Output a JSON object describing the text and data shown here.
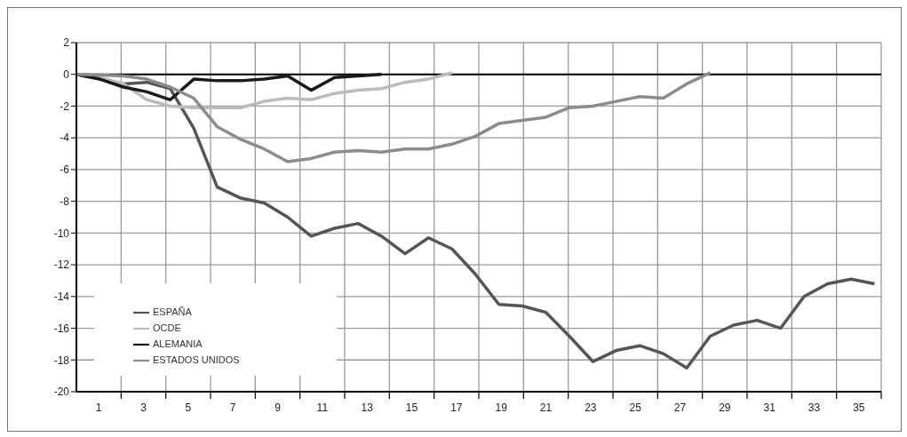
{
  "chart_data": {
    "type": "line",
    "x": [
      0,
      1.05,
      2.1,
      3.15,
      4.2,
      5.25,
      6.3,
      7.35,
      8.4,
      9.45,
      10.5,
      11.55,
      12.6,
      13.65,
      14.7,
      15.75,
      16.8,
      17.85,
      18.9,
      19.95,
      21,
      22.05,
      23.1,
      24.15,
      25.2,
      26.25,
      27.3,
      28.35,
      29.4,
      30.45,
      31.5,
      32.55,
      33.6,
      34.65,
      35.7
    ],
    "series": [
      {
        "name": "ESPAÑA",
        "color": "#555555",
        "values": [
          0,
          -0.3,
          -0.6,
          -0.5,
          -0.9,
          -3.4,
          -7.1,
          -7.8,
          -8.1,
          -9.0,
          -10.2,
          -9.7,
          -9.4,
          -10.2,
          -11.3,
          -10.3,
          -11.0,
          -12.6,
          -14.5,
          -14.6,
          -15.0,
          -16.5,
          -18.1,
          -17.4,
          -17.1,
          -17.6,
          -18.5,
          -16.5,
          -15.8,
          -15.5,
          -16.0,
          -14.0,
          -13.2,
          -12.9,
          -13.2
        ]
      },
      {
        "name": "OCDE",
        "color": "#bbbbbb",
        "values": [
          0,
          -0.2,
          -0.6,
          -1.6,
          -2.0,
          -2.1,
          -2.1,
          -2.1,
          -1.7,
          -1.5,
          -1.6,
          -1.2,
          -1.0,
          -0.9,
          -0.5,
          -0.3,
          0.1,
          null,
          null,
          null,
          null,
          null,
          null,
          null,
          null,
          null,
          null,
          null,
          null,
          null,
          null,
          null,
          null,
          null,
          null
        ]
      },
      {
        "name": "ALEMANIA",
        "color": "#1a1a1a",
        "values": [
          0,
          -0.3,
          -0.8,
          -1.1,
          -1.6,
          -0.3,
          -0.4,
          -0.4,
          -0.3,
          -0.1,
          -1.0,
          -0.2,
          -0.1,
          0,
          null,
          null,
          null,
          null,
          null,
          null,
          null,
          null,
          null,
          null,
          null,
          null,
          null,
          null,
          null,
          null,
          null,
          null,
          null,
          null,
          null
        ]
      },
      {
        "name": "ESTADOS UNIDOS",
        "color": "#8c8c8c",
        "values": [
          0,
          -0.05,
          -0.1,
          -0.3,
          -0.8,
          -1.5,
          -3.3,
          -4.1,
          -4.7,
          -5.5,
          -5.3,
          -4.9,
          -4.8,
          -4.9,
          -4.7,
          -4.7,
          -4.4,
          -3.9,
          -3.1,
          -2.9,
          -2.7,
          -2.1,
          -2.0,
          -1.7,
          -1.4,
          -1.5,
          -0.6,
          0.1,
          null,
          null,
          null,
          null,
          null,
          null,
          null
        ]
      }
    ],
    "xlim": [
      0,
      36
    ],
    "xticks": [
      1,
      {
        "value": 2,
        "label": null
      },
      3,
      {
        "value": 4,
        "label": null
      },
      5,
      {
        "value": 6,
        "label": null
      },
      7,
      {
        "value": 8,
        "label": null
      },
      9,
      {
        "value": 10,
        "label": null
      },
      11,
      {
        "value": 12,
        "label": null
      },
      13,
      {
        "value": 14,
        "label": null
      },
      15,
      {
        "value": 16,
        "label": null
      },
      17,
      {
        "value": 18,
        "label": null
      },
      19,
      {
        "value": 20,
        "label": null
      },
      21,
      {
        "value": 22,
        "label": null
      },
      23,
      {
        "value": 24,
        "label": null
      },
      25,
      {
        "value": 26,
        "label": null
      },
      27,
      {
        "value": 28,
        "label": null
      },
      29,
      {
        "value": 30,
        "label": null
      },
      31,
      {
        "value": 32,
        "label": null
      },
      33,
      {
        "value": 34,
        "label": null
      },
      35,
      {
        "value": 36,
        "label": null
      }
    ],
    "ylim": [
      -20,
      2
    ],
    "yticks": [
      -20,
      -18,
      -16,
      -14,
      -12,
      -10,
      -8,
      -6,
      -4,
      -2,
      0,
      2
    ],
    "ref_lines": [
      {
        "axis": "y",
        "value": 0,
        "color": "#000000"
      }
    ],
    "grid": true,
    "legend": "bottom left",
    "marker": "none",
    "line_style": "solid"
  }
}
